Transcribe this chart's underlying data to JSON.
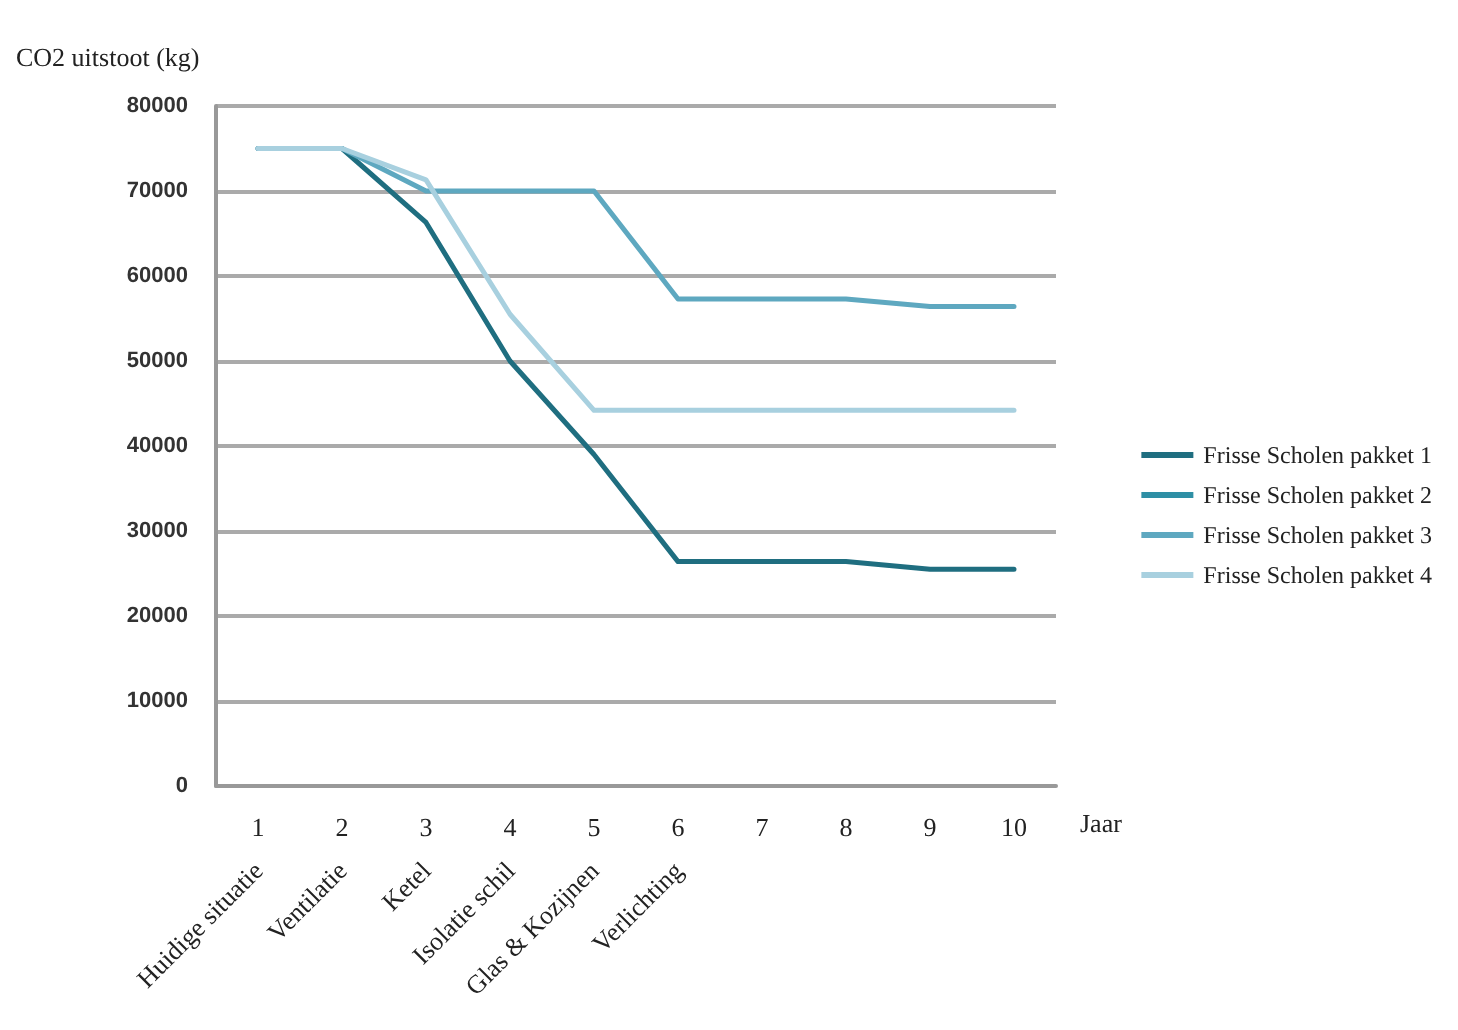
{
  "chart_data": {
    "type": "line",
    "ylabel": "CO2 uitstoot (kg)",
    "xlabel": "Jaar",
    "categories": [
      "1",
      "2",
      "3",
      "4",
      "5",
      "6",
      "7",
      "8",
      "9",
      "10"
    ],
    "series": [
      {
        "name": "Frisse Scholen pakket 1",
        "color": "#1f6e80",
        "values": [
          75000,
          75000,
          66300,
          50000,
          39000,
          26400,
          26400,
          26400,
          25500,
          25500
        ]
      },
      {
        "name": "Frisse Scholen pakket 2",
        "color": "#2e8fa5",
        "values": [
          null,
          null,
          null,
          null,
          null,
          null,
          null,
          null,
          null,
          null
        ]
      },
      {
        "name": "Frisse Scholen pakket 3",
        "color": "#5ea8c0",
        "values": [
          75000,
          75000,
          70000,
          70000,
          70000,
          57300,
          57300,
          57300,
          56400,
          56400
        ]
      },
      {
        "name": "Frisse Scholen pakket 4",
        "color": "#a8d0df",
        "values": [
          75000,
          75000,
          71300,
          55500,
          44200,
          44200,
          44200,
          44200,
          44200,
          44200
        ]
      }
    ],
    "annotations": [
      "Huidige situatie",
      "Ventilatie",
      "Ketel",
      "Isolatie schil",
      "Glas & Kozijnen",
      "Verlichting"
    ],
    "ylim": [
      0,
      80000
    ],
    "yticks": [
      0,
      10000,
      20000,
      30000,
      40000,
      50000,
      60000,
      70000,
      80000
    ],
    "grid": "y",
    "legend": "right",
    "marker": "none",
    "line_style": "solid"
  }
}
